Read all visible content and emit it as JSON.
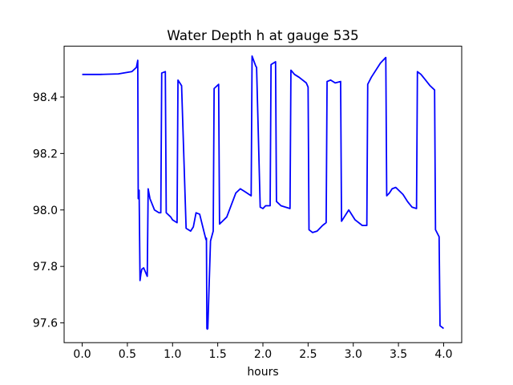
{
  "chart_data": {
    "type": "line",
    "title": "Water Depth h at gauge 535",
    "xlabel": "hours",
    "ylabel": "",
    "xlim": [
      -0.2,
      4.2
    ],
    "ylim": [
      97.53,
      98.58
    ],
    "xticks": [
      0.0,
      0.5,
      1.0,
      1.5,
      2.0,
      2.5,
      3.0,
      3.5,
      4.0
    ],
    "xtick_labels": [
      "0.0",
      "0.5",
      "1.0",
      "1.5",
      "2.0",
      "2.5",
      "3.0",
      "3.5",
      "4.0"
    ],
    "yticks": [
      97.6,
      97.8,
      98.0,
      98.2,
      98.4
    ],
    "ytick_labels": [
      "97.6",
      "97.8",
      "98.0",
      "98.2",
      "98.4"
    ],
    "grid": false,
    "legend": "none",
    "series": [
      {
        "color": "#0000ff",
        "x": [
          0.0,
          0.2,
          0.4,
          0.55,
          0.6,
          0.615,
          0.62,
          0.63,
          0.64,
          0.65,
          0.66,
          0.68,
          0.7,
          0.72,
          0.73,
          0.75,
          0.8,
          0.85,
          0.87,
          0.88,
          0.92,
          0.93,
          0.98,
          1.0,
          1.05,
          1.06,
          1.1,
          1.15,
          1.2,
          1.23,
          1.26,
          1.3,
          1.35,
          1.37,
          1.375,
          1.38,
          1.385,
          1.39,
          1.42,
          1.45,
          1.46,
          1.51,
          1.52,
          1.6,
          1.7,
          1.75,
          1.8,
          1.87,
          1.88,
          1.92,
          1.93,
          1.97,
          2.0,
          2.03,
          2.08,
          2.09,
          2.14,
          2.15,
          2.2,
          2.3,
          2.31,
          2.35,
          2.4,
          2.48,
          2.5,
          2.51,
          2.55,
          2.6,
          2.66,
          2.7,
          2.71,
          2.75,
          2.8,
          2.86,
          2.87,
          2.9,
          2.95,
          2.97,
          3.02,
          3.1,
          3.15,
          3.16,
          3.2,
          3.3,
          3.36,
          3.37,
          3.4,
          3.43,
          3.47,
          3.55,
          3.6,
          3.65,
          3.7,
          3.71,
          3.75,
          3.8,
          3.85,
          3.9,
          3.91,
          3.95,
          3.96,
          3.98,
          4.0
        ],
        "y": [
          98.48,
          98.48,
          98.482,
          98.49,
          98.505,
          98.53,
          98.04,
          98.07,
          97.75,
          97.775,
          97.79,
          97.795,
          97.78,
          97.765,
          98.075,
          98.04,
          98.0,
          97.99,
          97.99,
          98.485,
          98.49,
          97.99,
          97.975,
          97.965,
          97.955,
          98.46,
          98.44,
          97.935,
          97.925,
          97.94,
          97.99,
          97.985,
          97.92,
          97.895,
          97.9,
          97.58,
          97.578,
          97.58,
          97.89,
          97.925,
          98.43,
          98.445,
          97.95,
          97.975,
          98.06,
          98.075,
          98.065,
          98.05,
          98.545,
          98.51,
          98.505,
          98.01,
          98.005,
          98.015,
          98.015,
          98.515,
          98.525,
          98.03,
          98.015,
          98.005,
          98.495,
          98.48,
          98.47,
          98.45,
          98.435,
          97.93,
          97.92,
          97.925,
          97.945,
          97.955,
          98.455,
          98.46,
          98.45,
          98.455,
          97.96,
          97.975,
          98.0,
          97.99,
          97.965,
          97.945,
          97.945,
          98.445,
          98.47,
          98.52,
          98.54,
          98.05,
          98.06,
          98.075,
          98.08,
          98.055,
          98.03,
          98.01,
          98.005,
          98.49,
          98.48,
          98.46,
          98.44,
          98.425,
          97.93,
          97.905,
          97.59,
          97.585,
          97.58
        ]
      }
    ]
  }
}
